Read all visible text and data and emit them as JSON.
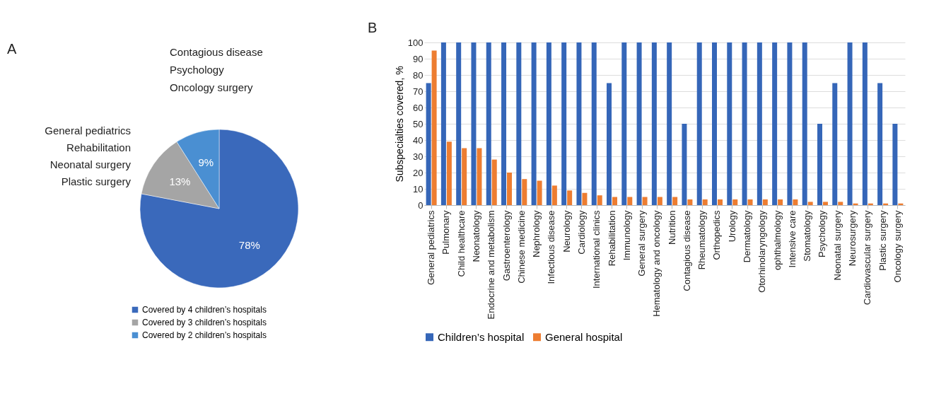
{
  "chart_data": [
    {
      "type": "pie",
      "categories": [
        "Covered by 4 children’s hospitals",
        "Covered by 3 children’s hospitals",
        "Covered by 2 children’s hospitals"
      ],
      "values": [
        78,
        13,
        9
      ],
      "colors": [
        "#3a69bb",
        "#a5a5a5",
        "#4a8fd2"
      ],
      "value_labels": [
        "78%",
        "13%",
        "9%"
      ],
      "legend": "bottom",
      "annotations": [
        "A",
        "Contagious disease",
        "Psychology",
        "Oncology surgery",
        "General pediatrics",
        "Rehabilitation",
        "Neonatal surgery",
        "Plastic surgery"
      ]
    },
    {
      "type": "bar",
      "ylabel": "Subspecialties covered, %",
      "categories": [
        "General pediatrics",
        "Pulmonary",
        "Child healthcare",
        "Neonatology",
        "Endocrine and metabolism",
        "Gastroenterology",
        "Chinese medicine",
        "Nephrology",
        "Infectious disease",
        "Neurology",
        "Cardiology",
        "International clinics",
        "Rehabilitation",
        "Immunology",
        "General surgery",
        "Hematology and oncology",
        "Nutrition",
        "Contagious disease",
        "Rheumatology",
        "Orthopedics",
        "Urology",
        "Dermatology",
        "Otorhinolaryngology",
        "ophthalmology",
        "Intensive care",
        "Stomatology",
        "Psychology",
        "Neonatal surgery",
        "Neurosurgery",
        "Cardiovascular surgery",
        "Plastic surgery",
        "Oncology surgery"
      ],
      "series": [
        {
          "name": "Children’s hospital",
          "color": "#3566b8",
          "values": [
            75,
            100,
            100,
            100,
            100,
            100,
            100,
            100,
            100,
            100,
            100,
            100,
            75,
            100,
            100,
            100,
            100,
            50,
            100,
            100,
            100,
            100,
            100,
            100,
            100,
            100,
            50,
            75,
            100,
            100,
            75,
            50
          ]
        },
        {
          "name": "General hospital",
          "color": "#ed7d31",
          "values": [
            95,
            39,
            35,
            35,
            28,
            20,
            16,
            15,
            12,
            9,
            7.5,
            6,
            5,
            5,
            5,
            5,
            5,
            3.5,
            3.5,
            3.5,
            3.5,
            3.5,
            3.5,
            3.5,
            3.5,
            2,
            2,
            2,
            1,
            1,
            1,
            1
          ]
        }
      ],
      "ylim": [
        0,
        100
      ],
      "yticks": [
        0,
        10,
        20,
        30,
        40,
        50,
        60,
        70,
        80,
        90,
        100
      ],
      "grid": "y",
      "legend": "bottom",
      "annotations": [
        "B"
      ]
    }
  ]
}
